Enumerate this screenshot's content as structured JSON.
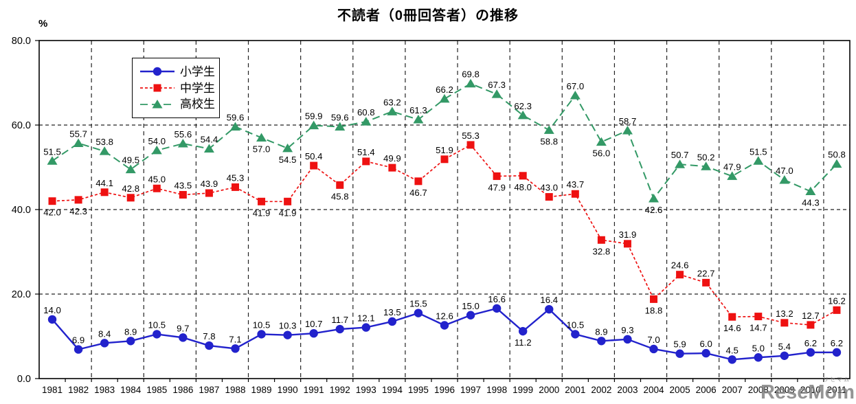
{
  "chart_data": {
    "type": "line",
    "title": "不読者（0冊回答者）の推移",
    "y_unit": "%",
    "ylim": [
      0,
      80
    ],
    "y_ticks": [
      0,
      20,
      40,
      60,
      80
    ],
    "y_tick_labels": [
      "0.0",
      "20.0",
      "40.0",
      "60.0",
      "80.0"
    ],
    "x": [
      1981,
      1982,
      1983,
      1984,
      1985,
      1986,
      1987,
      1988,
      1989,
      1990,
      1991,
      1992,
      1993,
      1994,
      1995,
      1996,
      1997,
      1998,
      1999,
      2000,
      2001,
      2002,
      2003,
      2004,
      2005,
      2006,
      2007,
      2008,
      2009,
      2010,
      2011
    ],
    "grid": {
      "horizontal_dashed_at": [
        20,
        40,
        60
      ],
      "vertical_dashed_every_n_categories": 2,
      "style": "black-dashed"
    },
    "legend": {
      "position": "inside-top-left",
      "entries": [
        "小学生",
        "中学生",
        "高校生"
      ]
    },
    "series": [
      {
        "id": "elementary",
        "name": "小学生",
        "color": "#2222CC",
        "line": "solid",
        "marker": "circle",
        "values": [
          14.0,
          6.9,
          8.4,
          8.9,
          10.5,
          9.7,
          7.8,
          7.1,
          10.5,
          10.3,
          10.7,
          11.7,
          12.1,
          13.5,
          15.5,
          12.6,
          15.0,
          16.6,
          11.2,
          16.4,
          10.5,
          8.9,
          9.3,
          7.0,
          5.9,
          6.0,
          4.5,
          5.0,
          5.4,
          6.2,
          6.2
        ],
        "label_side": [
          "a",
          "a",
          "a",
          "a",
          "a",
          "a",
          "a",
          "a",
          "a",
          "a",
          "a",
          "a",
          "a",
          "a",
          "a",
          "a",
          "a",
          "a",
          "b",
          "a",
          "a",
          "a",
          "a",
          "a",
          "a",
          "a",
          "a",
          "a",
          "a",
          "a",
          "a"
        ]
      },
      {
        "id": "junior-high",
        "name": "中学生",
        "color": "#EE1111",
        "line": "dash-short",
        "marker": "square",
        "values": [
          42.0,
          42.3,
          44.1,
          42.8,
          45.0,
          43.5,
          43.9,
          45.3,
          41.9,
          41.9,
          50.4,
          45.8,
          51.4,
          49.9,
          46.7,
          51.9,
          55.3,
          47.9,
          48.0,
          43.0,
          43.7,
          32.8,
          31.9,
          18.8,
          24.6,
          22.7,
          14.6,
          14.7,
          13.2,
          12.7,
          16.2
        ],
        "label_side": [
          "b",
          "b",
          "a",
          "a",
          "a",
          "a",
          "a",
          "a",
          "b",
          "b",
          "a",
          "b",
          "a",
          "a",
          "b",
          "a",
          "a",
          "b",
          "b",
          "a",
          "a",
          "b",
          "a",
          "b",
          "a",
          "a",
          "b",
          "b",
          "a",
          "a",
          "a"
        ]
      },
      {
        "id": "high-school",
        "name": "高校生",
        "color": "#339966",
        "line": "dash-long",
        "marker": "triangle",
        "values": [
          51.5,
          55.7,
          53.8,
          49.5,
          54.0,
          55.6,
          54.4,
          59.6,
          57.0,
          54.5,
          59.9,
          59.6,
          60.8,
          63.2,
          61.3,
          66.2,
          69.8,
          67.3,
          62.3,
          58.8,
          67.0,
          56.0,
          58.7,
          42.6,
          50.7,
          50.2,
          47.9,
          51.5,
          47.0,
          44.3,
          50.8
        ],
        "label_side": [
          "a",
          "a",
          "a",
          "a",
          "a",
          "a",
          "a",
          "a",
          "b",
          "b",
          "a",
          "a",
          "a",
          "a",
          "a",
          "a",
          "a",
          "a",
          "a",
          "b",
          "a",
          "b",
          "a",
          "b",
          "a",
          "a",
          "a",
          "a",
          "a",
          "b",
          "a"
        ]
      }
    ]
  },
  "watermark": {
    "text": "ReseMom",
    "ruby": "リセマム"
  }
}
